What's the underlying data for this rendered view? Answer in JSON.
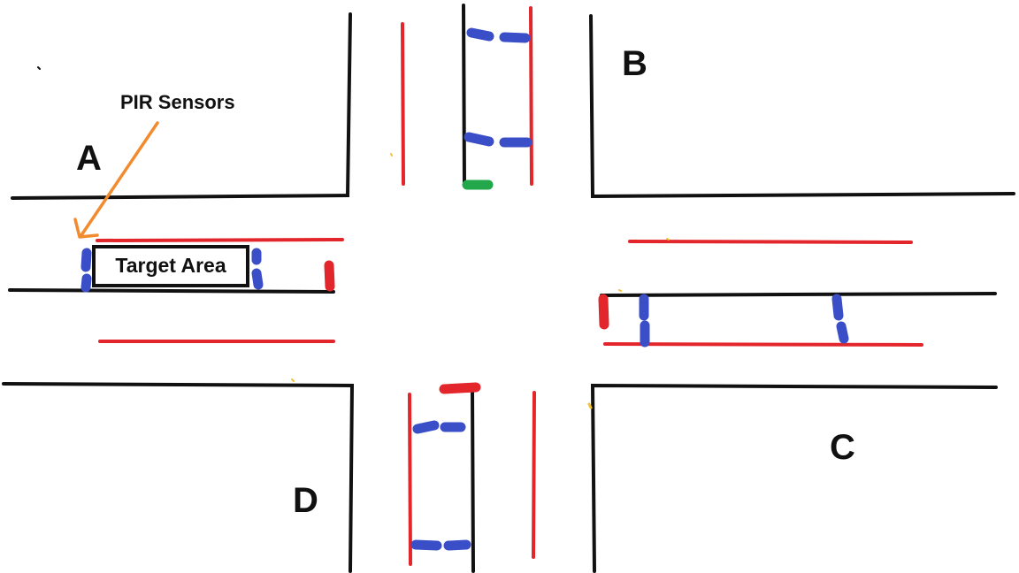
{
  "labels": {
    "quadrant_a": "A",
    "quadrant_b": "B",
    "quadrant_c": "C",
    "quadrant_d": "D"
  },
  "callout": {
    "text": "PIR Sensors",
    "color": "#f28a2e"
  },
  "target_area": {
    "text": "Target Area"
  },
  "colors": {
    "road_edge": "#111111",
    "lane_line": "#e3262b",
    "sensor": "#3a4fc7",
    "signal_green": "#22a84a",
    "signal_red": "#e3262b"
  }
}
